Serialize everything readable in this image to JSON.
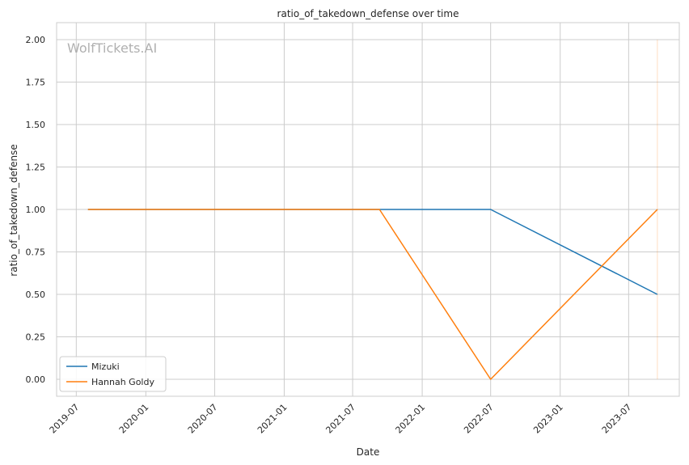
{
  "watermark": "WolfTickets.AI",
  "colors": {
    "mizuki": "#1f77b4",
    "hannah": "#ff7f0e",
    "grid": "#cccccc",
    "frame": "#cccccc"
  },
  "chart_data": {
    "type": "line",
    "title": "ratio_of_takedown_defense over time",
    "xlabel": "Date",
    "ylabel": "ratio_of_takedown_defense",
    "xlim": [
      "2019-05-10",
      "2023-11-12"
    ],
    "ylim": [
      -0.1,
      2.1
    ],
    "x_ticks": [
      "2019-07",
      "2020-01",
      "2020-07",
      "2021-01",
      "2021-07",
      "2022-01",
      "2022-07",
      "2023-01",
      "2023-07"
    ],
    "y_ticks": [
      "0.00",
      "0.25",
      "0.50",
      "0.75",
      "1.00",
      "1.25",
      "1.50",
      "1.75",
      "2.00"
    ],
    "grid": true,
    "legend_position": "lower-left",
    "series": [
      {
        "name": "Mizuki",
        "color": "#1f77b4",
        "points": [
          {
            "x": "2019-08-01",
            "y": 1.0
          },
          {
            "x": "2022-07-01",
            "y": 1.0
          },
          {
            "x": "2023-09-15",
            "y": 0.5
          }
        ]
      },
      {
        "name": "Hannah Goldy",
        "color": "#ff7f0e",
        "points": [
          {
            "x": "2019-08-01",
            "y": 1.0
          },
          {
            "x": "2021-09-10",
            "y": 1.0
          },
          {
            "x": "2022-07-01",
            "y": 0.0
          },
          {
            "x": "2023-09-15",
            "y": 1.0
          }
        ]
      }
    ],
    "vline": {
      "x": "2023-09-15",
      "y_range": [
        0.0,
        2.0
      ],
      "color": "#ff7f0e"
    }
  }
}
